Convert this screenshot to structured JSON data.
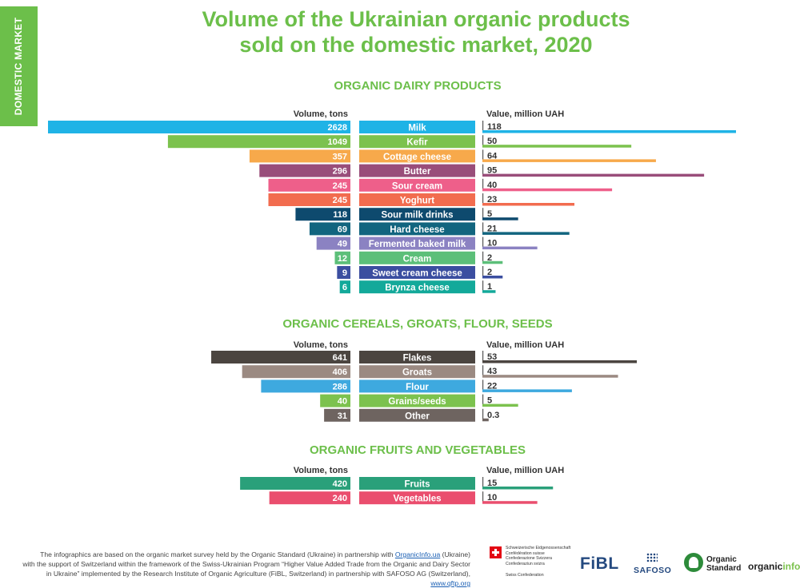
{
  "side_tab": "DOMESTIC MARKET",
  "title_lines": [
    "Volume of the Ukrainian organic products",
    "sold on the domestic market, 2020"
  ],
  "chart_data": [
    {
      "type": "bar",
      "title": "ORGANIC DAIRY PRODUCTS",
      "volume_header": "Volume, tons",
      "value_header": "Value, million UAH",
      "categories": [
        "Milk",
        "Kefir",
        "Cottage cheese",
        "Butter",
        "Sour cream",
        "Yoghurt",
        "Sour milk drinks",
        "Hard cheese",
        "Fermented baked milk",
        "Cream",
        "Sweet cream cheese",
        "Brynza cheese"
      ],
      "series": [
        {
          "name": "Volume, tons",
          "values": [
            2628,
            1049,
            357,
            296,
            245,
            245,
            118,
            69,
            49,
            12,
            9,
            6
          ]
        },
        {
          "name": "Value, million UAH",
          "values": [
            118,
            50,
            64,
            95,
            40,
            23,
            5,
            21,
            10,
            2,
            2,
            1
          ]
        }
      ],
      "colors": [
        "#1fb3e6",
        "#7cc24e",
        "#f7a94b",
        "#994d7a",
        "#ee5f8a",
        "#f26c4f",
        "#0e4a6e",
        "#12657f",
        "#8b82c2",
        "#5cbf79",
        "#3b4ea0",
        "#13a99a"
      ]
    },
    {
      "type": "bar",
      "title": "ORGANIC CEREALS, GROATS, FLOUR, SEEDS",
      "volume_header": "Volume, tons",
      "value_header": "Value, million UAH",
      "categories": [
        "Flakes",
        "Groats",
        "Flour",
        "Grains/seeds",
        "Other"
      ],
      "series": [
        {
          "name": "Volume, tons",
          "values": [
            641,
            406,
            286,
            40,
            31
          ]
        },
        {
          "name": "Value, million UAH",
          "values": [
            53,
            43,
            22,
            5,
            0.3
          ]
        }
      ],
      "colors": [
        "#4b4540",
        "#9b8a82",
        "#3ea9df",
        "#7cc24e",
        "#6e6460"
      ]
    },
    {
      "type": "bar",
      "title": "ORGANIC FRUITS AND VEGETABLES",
      "volume_header": "Volume, tons",
      "value_header": "Value, million UAH",
      "categories": [
        "Fruits",
        "Vegetables"
      ],
      "series": [
        {
          "name": "Volume, tons",
          "values": [
            420,
            240
          ]
        },
        {
          "name": "Value, million UAH",
          "values": [
            15,
            10
          ]
        }
      ],
      "colors": [
        "#2aa07a",
        "#ea4e6e"
      ]
    }
  ],
  "footer": {
    "line1_pre": "The infographics are based on the organic market survey held by the Organic Standard (Ukraine) in partnership with ",
    "line1_link": "OrganicInfo.ua",
    "line1_post": " (Ukraine)",
    "line2": "with the support of Switzerland within the framework of the Swiss-Ukrainian Program “Higher Value Added Trade  from the Organic and Dairy Sector",
    "line3_pre": "in Ukraine” implemented by the Research Institute of Organic Agriculture (FiBL, Switzerland)  in partnership with SAFOSO AG (Switzerland), ",
    "line3_link": "www.qftp.org"
  },
  "logos": {
    "swiss_lines": [
      "Schweizerische Eidgenossenschaft",
      "Confédération suisse",
      "Confederazione Svizzera",
      "Confederaziun svizra"
    ],
    "swiss_sub": "Swiss Confederation",
    "fibl": "FiBL",
    "safoso": "SAFOSO",
    "organic_standard": [
      "Organic",
      "Standard"
    ],
    "organicinfo_a": "organic",
    "organicinfo_b": "info"
  }
}
